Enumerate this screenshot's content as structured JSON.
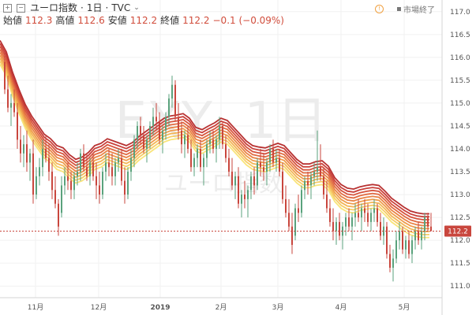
{
  "header": {
    "symbol_full": "ユーロ指数",
    "interval": "1日",
    "source": "TVC",
    "open_label": "始値",
    "open_value": "112.3",
    "high_label": "高値",
    "high_value": "112.6",
    "low_label": "安値",
    "low_value": "112.2",
    "close_label": "終値",
    "close_value": "112.2",
    "change": "−0.1 (−0.09%)"
  },
  "status": {
    "market": "市場終了"
  },
  "watermark": {
    "line1": "EXY, 1日",
    "line2": "ユーロ指数"
  },
  "price_tag": "112.2",
  "colors": {
    "up": "#5aa27c",
    "down": "#c9463d",
    "ribbon": [
      "#f9e47a",
      "#f6cd66",
      "#f3b556",
      "#ef9c4b",
      "#e98345",
      "#e16a41",
      "#d6533d",
      "#c9403a",
      "#b83232"
    ],
    "price_line": "#c9463d"
  },
  "chart_data": {
    "type": "candlestick",
    "x_ticks": [
      "11月",
      "12月",
      "2019",
      "2月",
      "3月",
      "4月",
      "5月"
    ],
    "y_ticks": [
      "111.0",
      "111.5",
      "112.0",
      "112.5",
      "113.0",
      "113.5",
      "114.0",
      "114.5",
      "115.0",
      "115.5",
      "116.0",
      "116.5",
      "117.0"
    ],
    "ylim": [
      110.9,
      117.1
    ],
    "last_close": 112.2,
    "ribbon_base": [
      [
        0,
        115.85
      ],
      [
        8,
        115.6
      ],
      [
        16,
        115.15
      ],
      [
        24,
        114.78
      ],
      [
        32,
        114.45
      ],
      [
        40,
        114.2
      ],
      [
        48,
        114.0
      ],
      [
        56,
        113.8
      ],
      [
        64,
        113.7
      ],
      [
        72,
        113.55
      ],
      [
        80,
        113.5
      ],
      [
        88,
        113.35
      ],
      [
        96,
        113.25
      ],
      [
        104,
        113.3
      ],
      [
        112,
        113.4
      ],
      [
        120,
        113.55
      ],
      [
        128,
        113.6
      ],
      [
        136,
        113.7
      ],
      [
        144,
        113.65
      ],
      [
        152,
        113.6
      ],
      [
        160,
        113.55
      ],
      [
        168,
        113.62
      ],
      [
        176,
        113.75
      ],
      [
        184,
        113.85
      ],
      [
        192,
        113.95
      ],
      [
        200,
        114.05
      ],
      [
        208,
        114.15
      ],
      [
        216,
        114.2
      ],
      [
        224,
        114.22
      ],
      [
        232,
        114.25
      ],
      [
        240,
        114.15
      ],
      [
        248,
        113.95
      ],
      [
        256,
        113.9
      ],
      [
        264,
        113.98
      ],
      [
        272,
        114.05
      ],
      [
        280,
        114.15
      ],
      [
        288,
        114.1
      ],
      [
        296,
        113.95
      ],
      [
        304,
        113.8
      ],
      [
        312,
        113.65
      ],
      [
        320,
        113.55
      ],
      [
        328,
        113.52
      ],
      [
        336,
        113.5
      ],
      [
        344,
        113.55
      ],
      [
        352,
        113.6
      ],
      [
        360,
        113.55
      ],
      [
        368,
        113.4
      ],
      [
        376,
        113.25
      ],
      [
        384,
        113.15
      ],
      [
        392,
        113.15
      ],
      [
        400,
        113.2
      ],
      [
        408,
        113.22
      ],
      [
        416,
        113.1
      ],
      [
        424,
        112.85
      ],
      [
        432,
        112.7
      ],
      [
        440,
        112.62
      ],
      [
        448,
        112.6
      ],
      [
        456,
        112.65
      ],
      [
        464,
        112.68
      ],
      [
        472,
        112.7
      ],
      [
        480,
        112.68
      ],
      [
        488,
        112.55
      ],
      [
        496,
        112.4
      ],
      [
        504,
        112.3
      ],
      [
        512,
        112.2
      ],
      [
        520,
        112.12
      ],
      [
        528,
        112.08
      ],
      [
        536,
        112.06
      ],
      [
        544,
        112.06
      ]
    ],
    "ribbon_spacing": 0.065,
    "ribbon_count": 9,
    "candles": [
      [
        6,
        115.9,
        116.1,
        115.2,
        115.3
      ],
      [
        10,
        115.3,
        115.6,
        114.8,
        114.9
      ],
      [
        14,
        114.9,
        115.2,
        114.5,
        115.0
      ],
      [
        18,
        115.0,
        115.3,
        114.7,
        114.8
      ],
      [
        22,
        114.8,
        115.0,
        114.0,
        114.2
      ],
      [
        26,
        114.2,
        114.5,
        113.7,
        113.9
      ],
      [
        30,
        113.9,
        114.3,
        113.6,
        114.1
      ],
      [
        34,
        114.1,
        114.4,
        113.5,
        113.7
      ],
      [
        38,
        113.7,
        114.0,
        113.3,
        113.9
      ],
      [
        42,
        113.9,
        114.2,
        112.8,
        113.0
      ],
      [
        46,
        113.0,
        113.6,
        112.9,
        113.4
      ],
      [
        50,
        113.4,
        113.8,
        113.2,
        113.6
      ],
      [
        54,
        113.6,
        114.2,
        113.4,
        114.0
      ],
      [
        58,
        114.0,
        114.3,
        113.7,
        113.8
      ],
      [
        62,
        113.8,
        114.1,
        113.3,
        113.5
      ],
      [
        66,
        113.5,
        113.7,
        112.9,
        113.1
      ],
      [
        70,
        113.1,
        113.4,
        112.7,
        112.8
      ],
      [
        74,
        112.8,
        112.9,
        112.1,
        112.3
      ],
      [
        78,
        112.6,
        113.4,
        112.5,
        113.2
      ],
      [
        82,
        113.2,
        113.6,
        113.0,
        113.4
      ],
      [
        86,
        113.4,
        113.7,
        113.1,
        113.3
      ],
      [
        90,
        113.3,
        113.5,
        112.9,
        113.1
      ],
      [
        94,
        113.1,
        113.5,
        112.9,
        113.4
      ],
      [
        98,
        113.4,
        113.7,
        113.2,
        113.5
      ],
      [
        102,
        113.5,
        114.0,
        113.3,
        113.9
      ],
      [
        106,
        113.9,
        114.1,
        113.5,
        113.6
      ],
      [
        110,
        113.6,
        113.9,
        113.3,
        113.4
      ],
      [
        114,
        113.4,
        113.8,
        113.2,
        113.7
      ],
      [
        118,
        113.7,
        113.9,
        113.3,
        113.4
      ],
      [
        122,
        113.4,
        113.7,
        112.9,
        113.2
      ],
      [
        126,
        113.2,
        113.5,
        112.8,
        113.0
      ],
      [
        130,
        113.0,
        113.6,
        112.9,
        113.5
      ],
      [
        134,
        113.5,
        113.9,
        113.3,
        113.7
      ],
      [
        138,
        113.7,
        114.0,
        113.4,
        113.6
      ],
      [
        142,
        113.6,
        113.9,
        113.2,
        113.4
      ],
      [
        146,
        113.4,
        113.8,
        113.2,
        113.7
      ],
      [
        150,
        113.7,
        114.0,
        113.5,
        113.8
      ],
      [
        154,
        113.8,
        114.0,
        113.2,
        113.3
      ],
      [
        158,
        113.3,
        113.6,
        112.8,
        113.0
      ],
      [
        162,
        113.0,
        113.6,
        112.9,
        113.5
      ],
      [
        166,
        113.5,
        114.0,
        113.3,
        113.8
      ],
      [
        170,
        113.8,
        114.3,
        113.6,
        114.2
      ],
      [
        174,
        114.2,
        114.6,
        114.0,
        114.5
      ],
      [
        178,
        114.5,
        114.7,
        114.1,
        114.3
      ],
      [
        182,
        114.3,
        114.5,
        113.9,
        114.0
      ],
      [
        186,
        114.0,
        114.3,
        113.7,
        114.2
      ],
      [
        190,
        114.2,
        114.6,
        114.0,
        114.5
      ],
      [
        194,
        114.5,
        114.9,
        114.3,
        114.7
      ],
      [
        198,
        114.7,
        115.0,
        114.4,
        114.6
      ],
      [
        202,
        114.6,
        114.8,
        114.1,
        114.2
      ],
      [
        206,
        114.2,
        114.5,
        113.9,
        114.4
      ],
      [
        210,
        114.4,
        114.8,
        114.2,
        114.7
      ],
      [
        214,
        114.7,
        115.2,
        114.5,
        115.1
      ],
      [
        218,
        115.1,
        115.6,
        114.9,
        115.4
      ],
      [
        222,
        115.4,
        115.5,
        114.6,
        114.7
      ],
      [
        226,
        114.7,
        115.0,
        114.2,
        114.4
      ],
      [
        230,
        114.4,
        114.6,
        113.9,
        114.1
      ],
      [
        234,
        114.1,
        114.4,
        113.8,
        114.3
      ],
      [
        238,
        114.3,
        114.5,
        113.9,
        114.0
      ],
      [
        242,
        114.0,
        114.2,
        113.5,
        113.6
      ],
      [
        246,
        113.6,
        113.9,
        113.4,
        113.8
      ],
      [
        250,
        113.8,
        114.1,
        113.6,
        114.0
      ],
      [
        254,
        114.0,
        114.2,
        113.5,
        113.6
      ],
      [
        258,
        113.6,
        113.9,
        113.2,
        113.8
      ],
      [
        262,
        113.8,
        114.2,
        113.6,
        114.1
      ],
      [
        266,
        114.1,
        114.4,
        113.9,
        114.2
      ],
      [
        270,
        114.2,
        114.4,
        113.9,
        114.0
      ],
      [
        274,
        114.0,
        114.3,
        113.7,
        114.2
      ],
      [
        278,
        114.2,
        114.7,
        114.0,
        114.5
      ],
      [
        282,
        114.5,
        114.6,
        114.0,
        114.1
      ],
      [
        286,
        114.1,
        114.3,
        113.7,
        113.8
      ],
      [
        290,
        113.8,
        114.0,
        113.4,
        113.5
      ],
      [
        294,
        113.5,
        113.8,
        113.1,
        113.2
      ],
      [
        298,
        113.2,
        113.5,
        112.9,
        113.4
      ],
      [
        302,
        113.4,
        113.6,
        112.7,
        112.8
      ],
      [
        306,
        112.8,
        113.1,
        112.5,
        113.0
      ],
      [
        310,
        113.0,
        113.3,
        112.7,
        112.9
      ],
      [
        314,
        112.9,
        113.2,
        112.5,
        113.1
      ],
      [
        318,
        113.1,
        113.5,
        112.9,
        113.4
      ],
      [
        322,
        113.4,
        113.6,
        113.0,
        113.2
      ],
      [
        326,
        113.2,
        113.8,
        113.1,
        113.7
      ],
      [
        330,
        113.7,
        114.0,
        113.4,
        113.6
      ],
      [
        334,
        113.6,
        113.9,
        113.3,
        113.5
      ],
      [
        338,
        113.5,
        113.8,
        113.2,
        113.7
      ],
      [
        342,
        113.7,
        114.1,
        113.5,
        114.0
      ],
      [
        346,
        114.0,
        114.2,
        113.6,
        113.7
      ],
      [
        350,
        113.7,
        114.0,
        113.5,
        113.8
      ],
      [
        354,
        113.8,
        114.0,
        113.4,
        113.5
      ],
      [
        358,
        113.5,
        113.7,
        112.8,
        112.9
      ],
      [
        362,
        112.9,
        113.2,
        112.5,
        112.6
      ],
      [
        366,
        112.6,
        112.9,
        112.2,
        112.3
      ],
      [
        370,
        112.3,
        112.6,
        111.7,
        111.9
      ],
      [
        374,
        112.1,
        112.8,
        112.0,
        112.7
      ],
      [
        378,
        112.7,
        113.0,
        112.4,
        112.6
      ],
      [
        382,
        112.6,
        113.2,
        112.5,
        113.1
      ],
      [
        386,
        113.1,
        113.4,
        112.9,
        113.3
      ],
      [
        390,
        113.3,
        113.5,
        113.0,
        113.2
      ],
      [
        394,
        113.2,
        113.5,
        112.9,
        113.4
      ],
      [
        398,
        113.4,
        113.7,
        113.2,
        113.5
      ],
      [
        402,
        113.5,
        114.4,
        113.3,
        113.6
      ],
      [
        406,
        113.6,
        114.1,
        113.3,
        113.4
      ],
      [
        410,
        113.4,
        113.6,
        112.9,
        113.0
      ],
      [
        414,
        113.0,
        113.3,
        112.6,
        112.7
      ],
      [
        418,
        112.7,
        112.9,
        112.3,
        112.4
      ],
      [
        422,
        112.4,
        112.7,
        112.0,
        112.2
      ],
      [
        426,
        112.2,
        112.5,
        111.9,
        112.4
      ],
      [
        430,
        112.4,
        112.6,
        112.0,
        112.1
      ],
      [
        434,
        112.1,
        112.4,
        111.8,
        112.3
      ],
      [
        438,
        112.3,
        112.6,
        112.1,
        112.5
      ],
      [
        442,
        112.5,
        112.7,
        112.2,
        112.3
      ],
      [
        446,
        112.3,
        112.6,
        112.0,
        112.5
      ],
      [
        450,
        112.5,
        112.8,
        112.3,
        112.6
      ],
      [
        454,
        112.6,
        112.9,
        112.4,
        112.5
      ],
      [
        458,
        112.5,
        112.8,
        112.2,
        112.7
      ],
      [
        462,
        112.7,
        112.9,
        112.4,
        112.6
      ],
      [
        466,
        112.6,
        112.8,
        112.3,
        112.4
      ],
      [
        470,
        112.4,
        112.7,
        112.2,
        112.6
      ],
      [
        474,
        112.6,
        112.9,
        112.4,
        112.7
      ],
      [
        478,
        112.7,
        112.8,
        112.3,
        112.4
      ],
      [
        482,
        112.4,
        112.6,
        112.0,
        112.1
      ],
      [
        486,
        112.1,
        112.5,
        111.9,
        112.3
      ],
      [
        490,
        112.3,
        112.4,
        111.6,
        111.7
      ],
      [
        494,
        111.7,
        111.9,
        111.3,
        111.4
      ],
      [
        498,
        111.4,
        111.8,
        111.1,
        111.6
      ],
      [
        502,
        111.6,
        112.2,
        111.5,
        112.0
      ],
      [
        506,
        112.0,
        112.4,
        111.8,
        112.2
      ],
      [
        510,
        112.2,
        112.3,
        111.7,
        111.8
      ],
      [
        514,
        111.8,
        112.1,
        111.6,
        112.0
      ],
      [
        518,
        112.0,
        112.2,
        111.6,
        111.7
      ],
      [
        522,
        111.7,
        112.1,
        111.5,
        112.0
      ],
      [
        526,
        112.0,
        112.3,
        111.8,
        112.2
      ],
      [
        530,
        112.2,
        112.4,
        111.9,
        112.0
      ],
      [
        534,
        112.0,
        112.3,
        111.8,
        112.2
      ],
      [
        538,
        112.2,
        112.6,
        112.0,
        112.5
      ],
      [
        542,
        112.5,
        112.6,
        112.2,
        112.3
      ],
      [
        546,
        112.3,
        112.6,
        112.2,
        112.2
      ]
    ]
  }
}
